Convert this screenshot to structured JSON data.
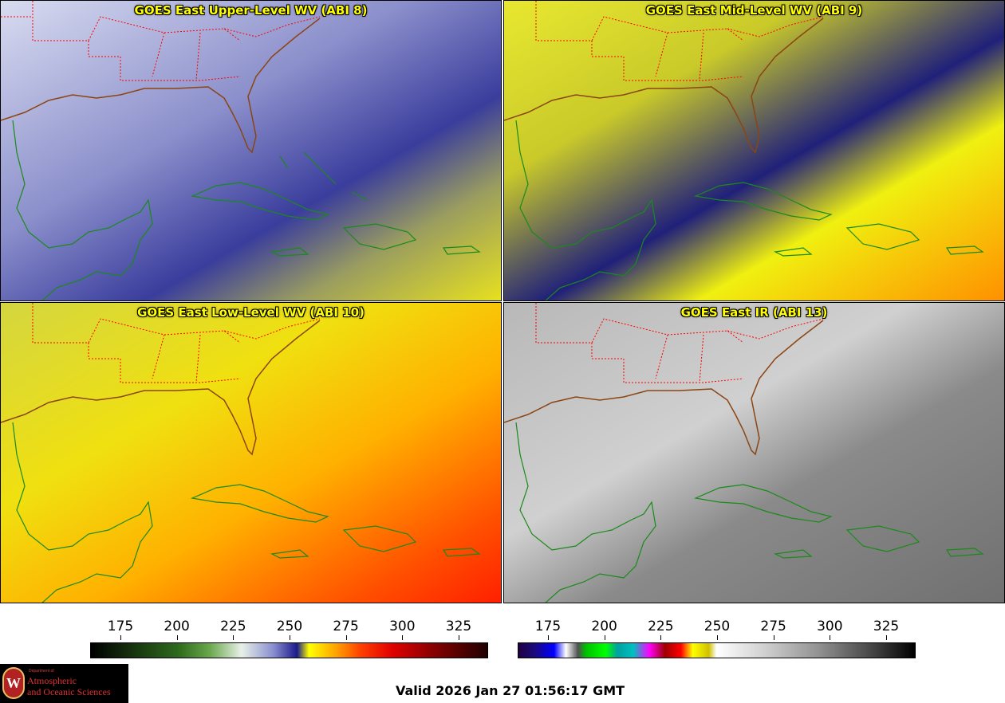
{
  "panels": {
    "wv8": {
      "title": "GOES East Upper-Level WV (ABI 8)"
    },
    "wv9": {
      "title": "GOES East Mid-Level WV (ABI 9)"
    },
    "wv10": {
      "title": "GOES East Low-Level WV (ABI 10)"
    },
    "ir13": {
      "title": "GOES East IR (ABI 13)"
    }
  },
  "colorbars": {
    "wv": {
      "ticks": [
        "175",
        "200",
        "225",
        "250",
        "275",
        "300",
        "325"
      ]
    },
    "ir": {
      "ticks": [
        "175",
        "200",
        "225",
        "250",
        "275",
        "300",
        "325"
      ]
    }
  },
  "logo": {
    "dept_text": "Department of",
    "line1": "Atmospheric",
    "line2": "and Oceanic Sciences",
    "seal_letter": "W"
  },
  "valid_time": "Valid 2026 Jan 27 01:56:17 GMT",
  "colors": {
    "title_text": "#ffff00",
    "state_borders": "#ff0000",
    "coastlines": "#1a8a1a",
    "us_coastline": "#8b4513"
  }
}
